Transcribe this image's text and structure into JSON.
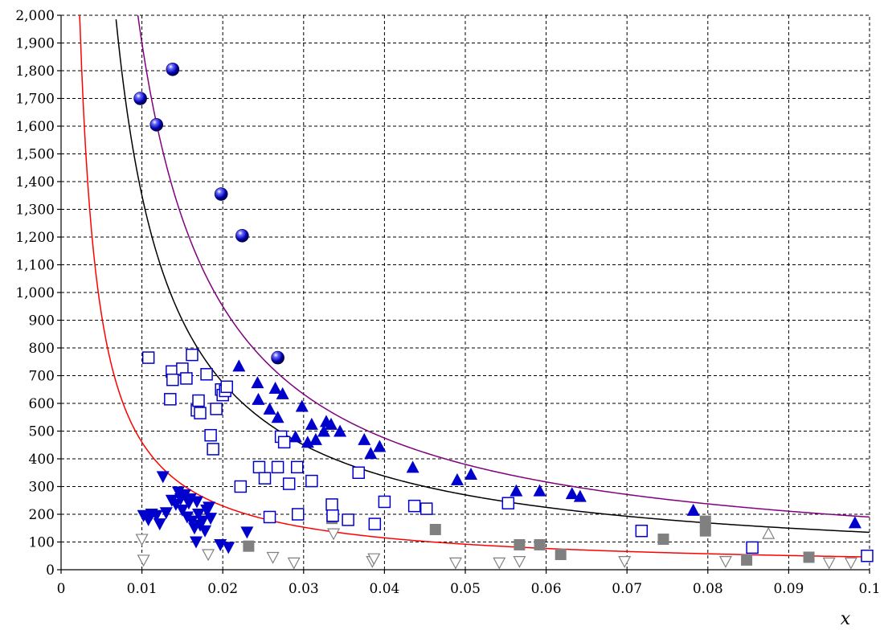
{
  "chart_data": {
    "type": "scatter",
    "title": "",
    "xlabel": "x",
    "ylabel": "",
    "xlim": [
      0,
      0.1
    ],
    "ylim": [
      0,
      2000
    ],
    "grid": true,
    "legend": "none",
    "x_ticks": [
      "0",
      "0.01",
      "0.02",
      "0.03",
      "0.04",
      "0.05",
      "0.06",
      "0.07",
      "0.08",
      "0.09",
      "0.1"
    ],
    "y_ticks": [
      "0",
      "100",
      "200",
      "300",
      "400",
      "500",
      "600",
      "700",
      "800",
      "900",
      "1,000",
      "1,100",
      "1,200",
      "1,300",
      "1,400",
      "1,500",
      "1,600",
      "1,700",
      "1,800",
      "1,900",
      "2,000"
    ],
    "curves": [
      {
        "color": "#ff0000",
        "k": 4.6,
        "x_range": [
          0.0023,
          0.1
        ]
      },
      {
        "color": "#000000",
        "k": 13.5,
        "x_range": [
          0.0068,
          0.1
        ]
      },
      {
        "color": "#800080",
        "k": 19.0,
        "x_range": [
          0.0095,
          0.1
        ]
      }
    ],
    "series": [
      {
        "marker": "sphere",
        "color": "#0000cc",
        "points": [
          [
            0.0098,
            1700
          ],
          [
            0.0118,
            1605
          ],
          [
            0.0138,
            1805
          ],
          [
            0.0198,
            1355
          ],
          [
            0.0224,
            1205
          ],
          [
            0.0268,
            765
          ]
        ]
      },
      {
        "marker": "triangle-up-filled",
        "color": "#0000cc",
        "points": [
          [
            0.022,
            735
          ],
          [
            0.0243,
            675
          ],
          [
            0.0244,
            615
          ],
          [
            0.0258,
            580
          ],
          [
            0.0265,
            655
          ],
          [
            0.0268,
            550
          ],
          [
            0.0274,
            635
          ],
          [
            0.029,
            480
          ],
          [
            0.0298,
            590
          ],
          [
            0.0305,
            460
          ],
          [
            0.031,
            525
          ],
          [
            0.0315,
            470
          ],
          [
            0.0325,
            500
          ],
          [
            0.0328,
            535
          ],
          [
            0.0334,
            525
          ],
          [
            0.0345,
            500
          ],
          [
            0.0375,
            470
          ],
          [
            0.0383,
            420
          ],
          [
            0.0394,
            445
          ],
          [
            0.0435,
            370
          ],
          [
            0.049,
            325
          ],
          [
            0.0507,
            345
          ],
          [
            0.0563,
            285
          ],
          [
            0.0592,
            285
          ],
          [
            0.0632,
            275
          ],
          [
            0.0642,
            265
          ],
          [
            0.0782,
            215
          ],
          [
            0.0982,
            170
          ]
        ]
      },
      {
        "marker": "square-open",
        "color": "#0000cc",
        "points": [
          [
            0.0108,
            765
          ],
          [
            0.0135,
            615
          ],
          [
            0.0137,
            715
          ],
          [
            0.0138,
            685
          ],
          [
            0.015,
            725
          ],
          [
            0.0155,
            690
          ],
          [
            0.0162,
            775
          ],
          [
            0.0168,
            575
          ],
          [
            0.017,
            610
          ],
          [
            0.0172,
            565
          ],
          [
            0.018,
            705
          ],
          [
            0.0185,
            485
          ],
          [
            0.0188,
            435
          ],
          [
            0.0192,
            580
          ],
          [
            0.0198,
            650
          ],
          [
            0.02,
            630
          ],
          [
            0.0203,
            645
          ],
          [
            0.0205,
            660
          ],
          [
            0.0222,
            300
          ],
          [
            0.0245,
            370
          ],
          [
            0.0252,
            330
          ],
          [
            0.0258,
            190
          ],
          [
            0.0268,
            370
          ],
          [
            0.0272,
            480
          ],
          [
            0.0276,
            460
          ],
          [
            0.0282,
            310
          ],
          [
            0.0292,
            370
          ],
          [
            0.0293,
            200
          ],
          [
            0.031,
            320
          ],
          [
            0.0335,
            235
          ],
          [
            0.0336,
            195
          ],
          [
            0.0355,
            180
          ],
          [
            0.0368,
            350
          ],
          [
            0.0388,
            165
          ],
          [
            0.04,
            245
          ],
          [
            0.0437,
            230
          ],
          [
            0.0452,
            220
          ],
          [
            0.0553,
            240
          ],
          [
            0.0718,
            140
          ],
          [
            0.0855,
            80
          ],
          [
            0.0997,
            50
          ]
        ]
      },
      {
        "marker": "triangle-down-filled",
        "color": "#0000cc",
        "points": [
          [
            0.0102,
            195
          ],
          [
            0.0108,
            180
          ],
          [
            0.0112,
            200
          ],
          [
            0.0118,
            195
          ],
          [
            0.0122,
            165
          ],
          [
            0.0126,
            335
          ],
          [
            0.013,
            205
          ],
          [
            0.0137,
            250
          ],
          [
            0.0142,
            235
          ],
          [
            0.0145,
            280
          ],
          [
            0.0148,
            255
          ],
          [
            0.015,
            215
          ],
          [
            0.0153,
            270
          ],
          [
            0.0156,
            190
          ],
          [
            0.0158,
            240
          ],
          [
            0.016,
            255
          ],
          [
            0.0162,
            175
          ],
          [
            0.0165,
            150
          ],
          [
            0.0167,
            100
          ],
          [
            0.0168,
            245
          ],
          [
            0.017,
            200
          ],
          [
            0.0172,
            160
          ],
          [
            0.0175,
            175
          ],
          [
            0.0178,
            140
          ],
          [
            0.018,
            215
          ],
          [
            0.0183,
            225
          ],
          [
            0.0185,
            185
          ],
          [
            0.0197,
            90
          ],
          [
            0.0207,
            80
          ],
          [
            0.023,
            135
          ]
        ]
      },
      {
        "marker": "square-filled",
        "color": "#808080",
        "points": [
          [
            0.0232,
            85
          ],
          [
            0.0335,
            185
          ],
          [
            0.0463,
            145
          ],
          [
            0.0567,
            90
          ],
          [
            0.0592,
            90
          ],
          [
            0.0618,
            55
          ],
          [
            0.0745,
            110
          ],
          [
            0.0797,
            175
          ],
          [
            0.0797,
            140
          ],
          [
            0.0848,
            35
          ],
          [
            0.0925,
            45
          ]
        ]
      },
      {
        "marker": "triangle-down-open",
        "color": "#808080",
        "points": [
          [
            0.01,
            110
          ],
          [
            0.0102,
            35
          ],
          [
            0.0182,
            55
          ],
          [
            0.0262,
            45
          ],
          [
            0.0288,
            25
          ],
          [
            0.0337,
            130
          ],
          [
            0.0385,
            30
          ],
          [
            0.0387,
            40
          ],
          [
            0.0488,
            25
          ],
          [
            0.0542,
            25
          ],
          [
            0.0567,
            30
          ],
          [
            0.0697,
            30
          ],
          [
            0.0822,
            30
          ],
          [
            0.095,
            25
          ],
          [
            0.0977,
            25
          ]
        ]
      },
      {
        "marker": "triangle-up-open",
        "color": "#808080",
        "points": [
          [
            0.0875,
            130
          ]
        ]
      }
    ]
  }
}
